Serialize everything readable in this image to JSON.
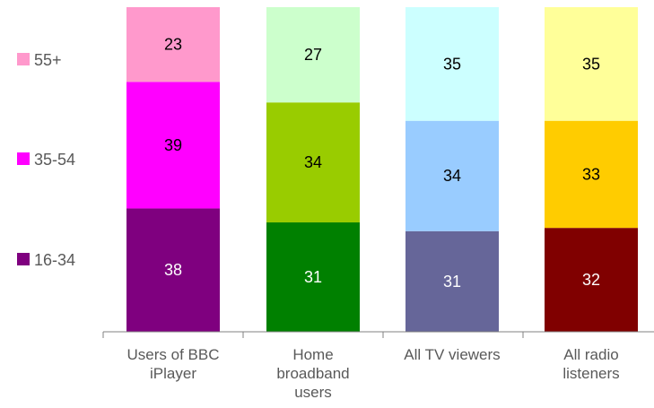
{
  "chart_data": {
    "type": "bar",
    "stacked": true,
    "normalized_percent": true,
    "categories": [
      [
        "Users of BBC",
        "iPlayer"
      ],
      [
        "Home",
        "broadband",
        "users"
      ],
      [
        "All TV viewers"
      ],
      [
        "All radio",
        "listeners"
      ]
    ],
    "series": [
      {
        "name": "16-34",
        "values": [
          38,
          31,
          31,
          32
        ]
      },
      {
        "name": "35-54",
        "values": [
          39,
          34,
          34,
          33
        ]
      },
      {
        "name": "55+",
        "values": [
          23,
          27,
          35,
          35
        ]
      }
    ],
    "legend": {
      "position": "left",
      "swatch_colors": {
        "16-34": "#7f007f",
        "35-54": "#ff00ff",
        "55+": "#ff99cc"
      }
    },
    "bar_colors": [
      {
        "16-34": "#7f007f",
        "35-54": "#ff00ff",
        "55+": "#ff99cc"
      },
      {
        "16-34": "#008000",
        "35-54": "#99cc00",
        "55+": "#ccffcc"
      },
      {
        "16-34": "#666699",
        "35-54": "#99ccff",
        "55+": "#ccffff"
      },
      {
        "16-34": "#800000",
        "35-54": "#ffcc00",
        "55+": "#ffff99"
      }
    ],
    "label_colors": [
      {
        "16-34": "#ffffff",
        "35-54": "#000000",
        "55+": "#000000"
      },
      {
        "16-34": "#ffffff",
        "35-54": "#000000",
        "55+": "#000000"
      },
      {
        "16-34": "#ffffff",
        "35-54": "#000000",
        "55+": "#000000"
      },
      {
        "16-34": "#ffffff",
        "35-54": "#000000",
        "55+": "#000000"
      }
    ],
    "axis_color": "#808080",
    "grid": false,
    "xlabel": "",
    "ylabel": "",
    "title": ""
  }
}
